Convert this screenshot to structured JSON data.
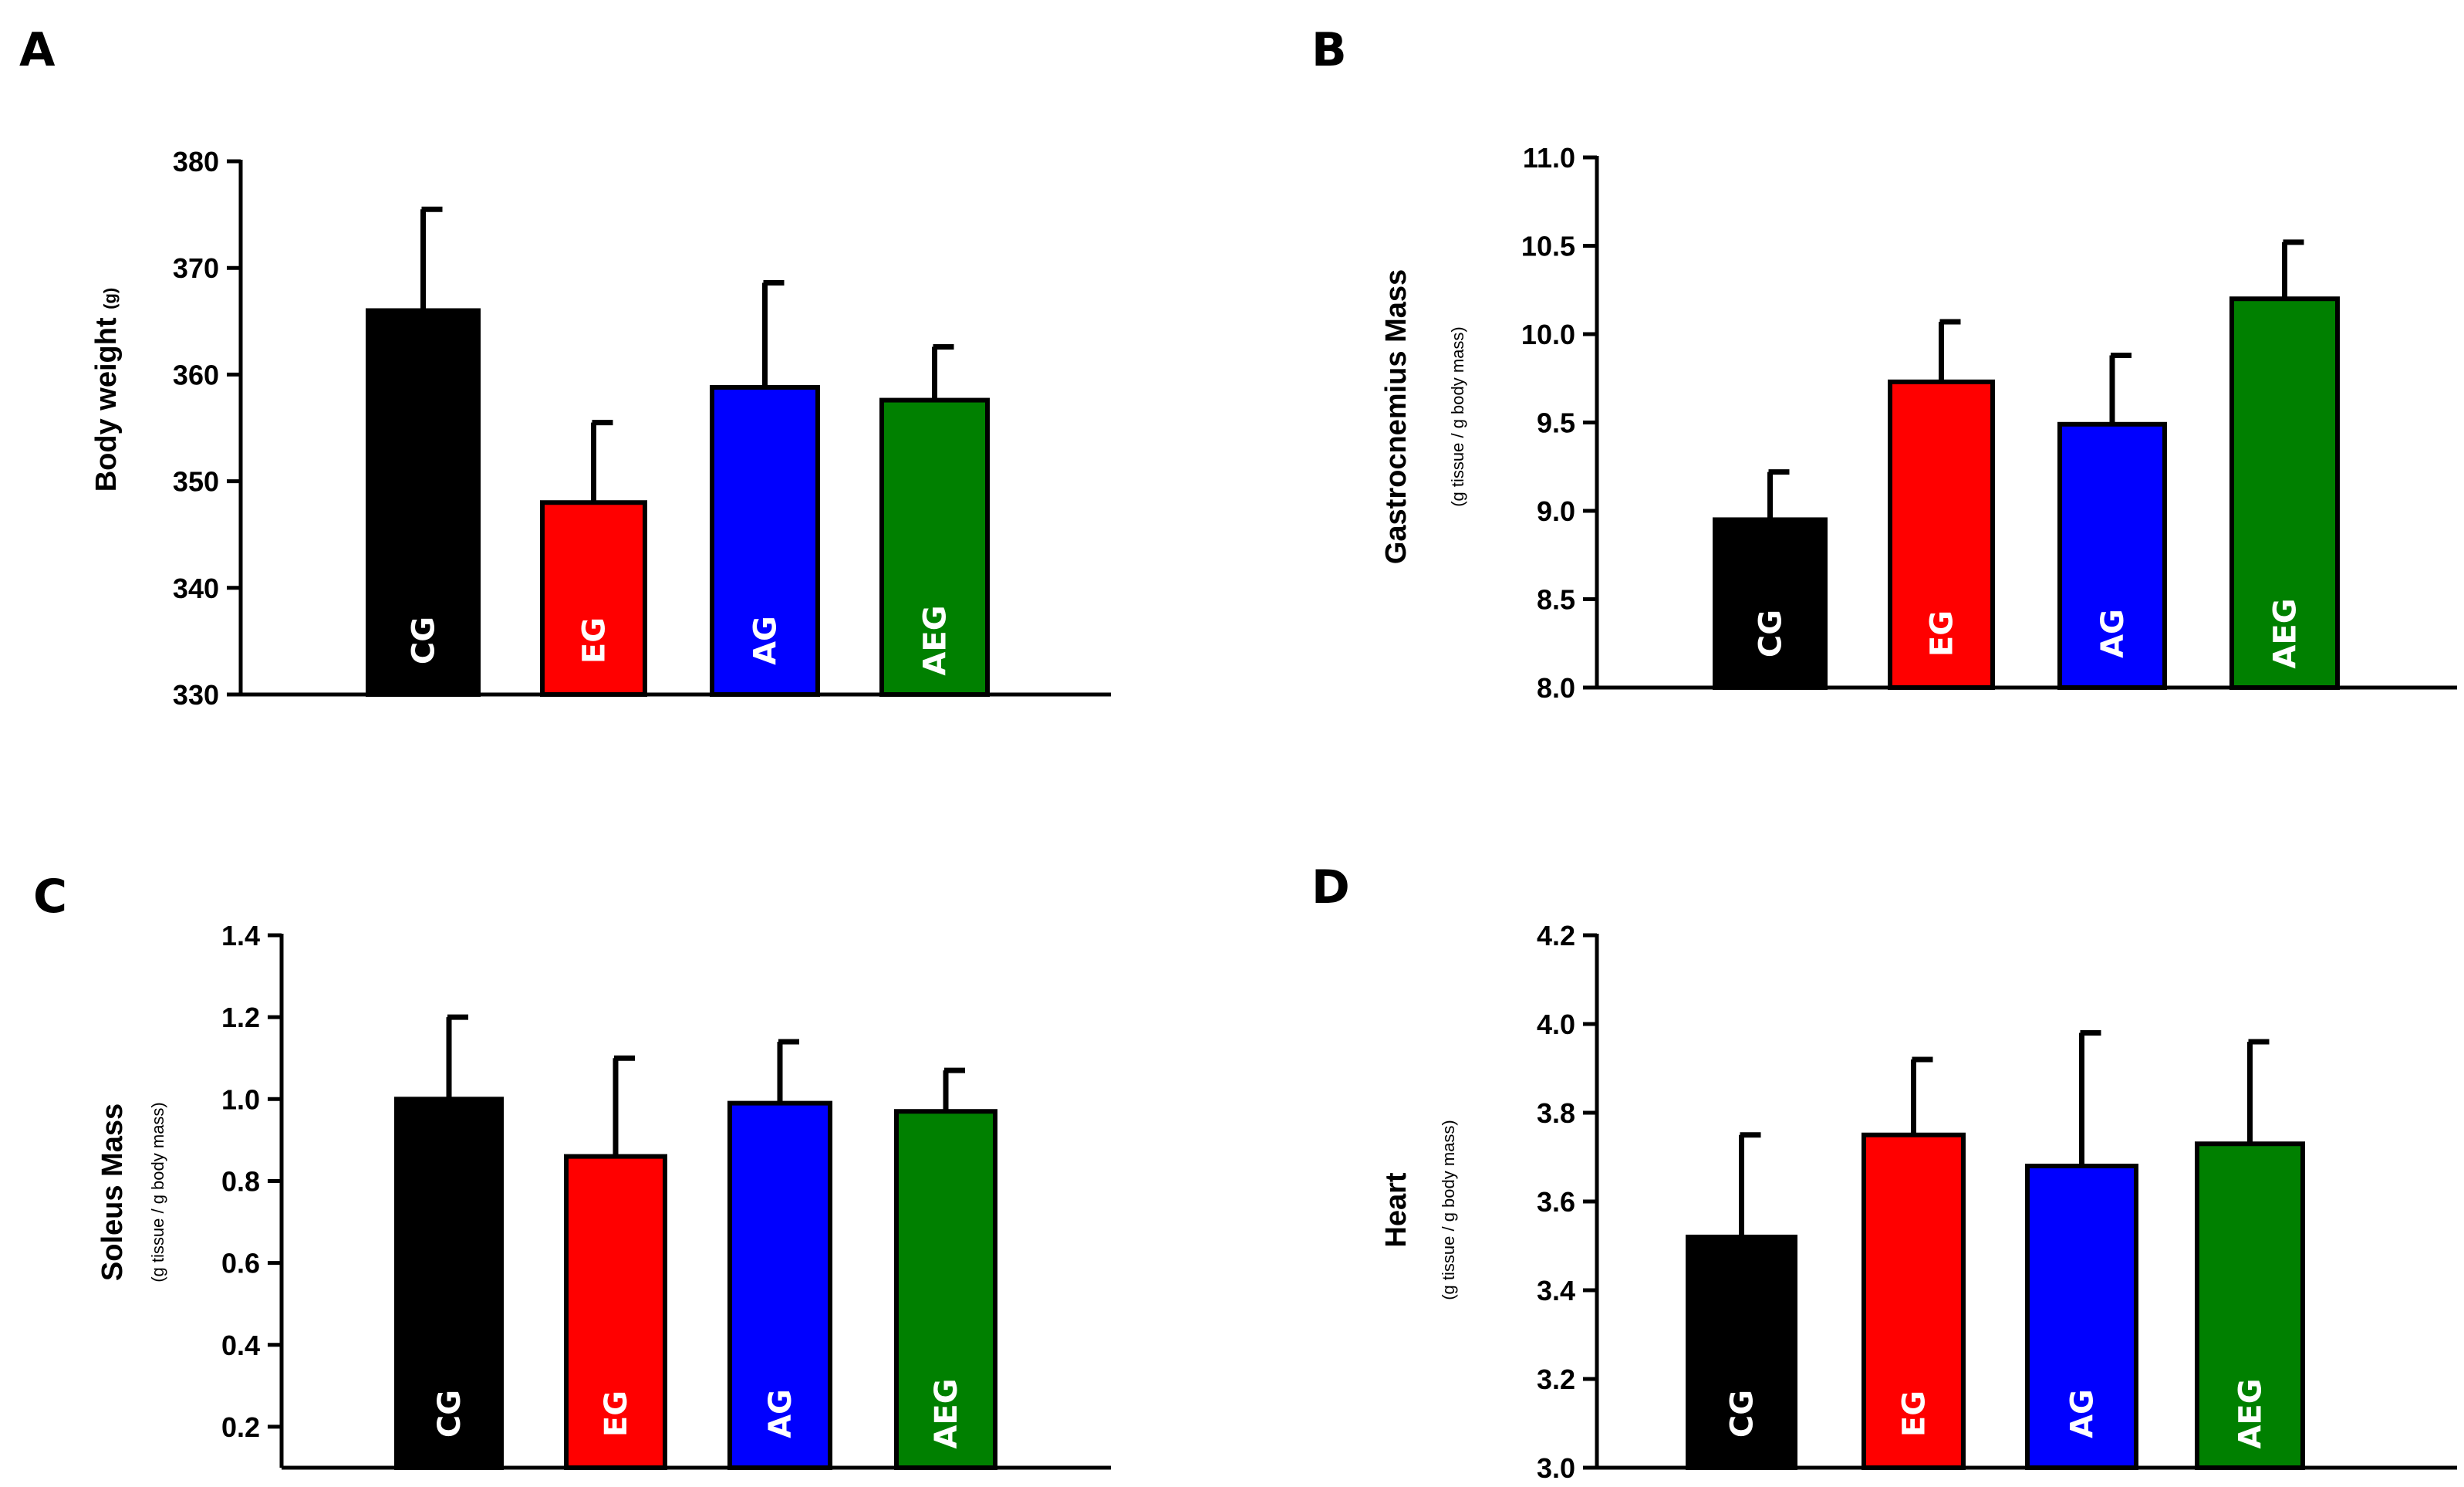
{
  "chart_data": [
    {
      "panel": "A",
      "type": "bar",
      "categories": [
        "CG",
        "EG",
        "AG",
        "AEG"
      ],
      "values": [
        366,
        348,
        358.8,
        357.6
      ],
      "errors": [
        9.5,
        7.5,
        9.8,
        5
      ],
      "colors": [
        "#000000",
        "#ff0000",
        "#0000ff",
        "#008000"
      ],
      "ylabel": "Body weight",
      "ylabel_sub": "(g)",
      "ylabel_inline": true,
      "ylim": [
        330,
        380
      ],
      "yticks": [
        330,
        340,
        350,
        360,
        370,
        380
      ],
      "tick_decimals": 0
    },
    {
      "panel": "B",
      "type": "bar",
      "categories": [
        "CG",
        "EG",
        "AG",
        "AEG"
      ],
      "values": [
        8.95,
        9.73,
        9.49,
        10.2
      ],
      "errors": [
        0.27,
        0.34,
        0.39,
        0.32
      ],
      "colors": [
        "#000000",
        "#ff0000",
        "#0000ff",
        "#008000"
      ],
      "ylabel": "Gastrocnemius Mass",
      "ylabel_sub": "(g tissue / g body mass)",
      "ylabel_inline": false,
      "ylim": [
        8.0,
        11.0
      ],
      "yticks": [
        8.0,
        8.5,
        9.0,
        9.5,
        10.0,
        10.5,
        11.0
      ],
      "tick_decimals": 1
    },
    {
      "panel": "C",
      "type": "bar",
      "categories": [
        "CG",
        "EG",
        "AG",
        "AEG"
      ],
      "values": [
        1.0,
        0.86,
        0.99,
        0.97
      ],
      "errors": [
        0.2,
        0.24,
        0.15,
        0.1
      ],
      "colors": [
        "#000000",
        "#ff0000",
        "#0000ff",
        "#008000"
      ],
      "ylabel": "Soleus Mass",
      "ylabel_sub": "(g tissue / g body mass)",
      "ylabel_inline": false,
      "ylim": [
        0.1,
        1.4
      ],
      "yticks": [
        0.2,
        0.4,
        0.6,
        0.8,
        1.0,
        1.2,
        1.4
      ],
      "tick_decimals": 1
    },
    {
      "panel": "D",
      "type": "bar",
      "categories": [
        "CG",
        "EG",
        "AG",
        "AEG"
      ],
      "values": [
        3.52,
        3.75,
        3.68,
        3.73
      ],
      "errors": [
        0.23,
        0.17,
        0.3,
        0.23
      ],
      "colors": [
        "#000000",
        "#ff0000",
        "#0000ff",
        "#008000"
      ],
      "ylabel": "Heart",
      "ylabel_sub": "(g tissue / g body mass)",
      "ylabel_inline": false,
      "ylim": [
        3.0,
        4.2
      ],
      "yticks": [
        3.0,
        3.2,
        3.4,
        3.6,
        3.8,
        4.0,
        4.2
      ],
      "tick_decimals": 1
    }
  ]
}
